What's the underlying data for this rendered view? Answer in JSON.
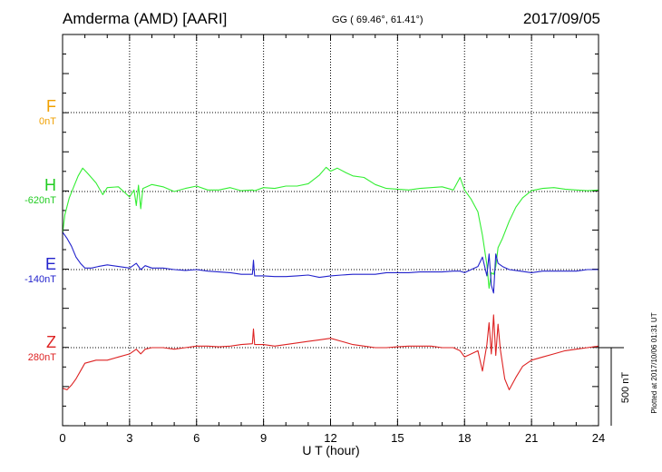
{
  "header": {
    "station": "Amderma (AMD)  [AARI]",
    "coords": "GG ( 69.46°,  61.41°)",
    "date": "2017/09/05"
  },
  "footer": {
    "plotted": "Plotted at 2017/10/06 01:31  UT"
  },
  "scale_bar": {
    "label": "500 nT",
    "nT": 500
  },
  "chart_data": {
    "type": "line",
    "title": "Amderma (AMD)  [AARI]",
    "xlabel": "U T (hour)",
    "ylabel": "",
    "xlim": [
      0,
      24
    ],
    "xticks": [
      "0",
      "3",
      "6",
      "9",
      "12",
      "15",
      "18",
      "21",
      "24"
    ],
    "grid": true,
    "units_per_band": 500,
    "series": [
      {
        "name": "F",
        "baseline_label": "0nT",
        "color": "#f0a000",
        "x": [],
        "y": []
      },
      {
        "name": "H",
        "baseline_label": "-620nT",
        "color": "#33ee33",
        "x": [
          0,
          0.1,
          0.3,
          0.5,
          0.7,
          0.9,
          1.1,
          1.5,
          1.8,
          2.0,
          2.5,
          3.0,
          3.2,
          3.3,
          3.4,
          3.5,
          3.6,
          4.0,
          4.5,
          5.0,
          5.5,
          6.0,
          6.5,
          7.0,
          7.5,
          8.0,
          8.5,
          8.6,
          9.0,
          9.5,
          10.0,
          10.5,
          11.0,
          11.5,
          11.8,
          12.0,
          12.3,
          12.7,
          13.0,
          13.5,
          14.0,
          14.5,
          15.0,
          15.5,
          16.0,
          16.5,
          17.0,
          17.5,
          17.8,
          18.0,
          18.3,
          18.6,
          18.8,
          19.0,
          19.1,
          19.2,
          19.3,
          19.4,
          19.5,
          19.7,
          20.0,
          20.3,
          20.6,
          21.0,
          21.5,
          22.0,
          22.5,
          23.0,
          23.5,
          24.0
        ],
        "y": [
          -270,
          -150,
          -40,
          30,
          100,
          150,
          120,
          55,
          -20,
          25,
          30,
          -35,
          10,
          -90,
          40,
          -110,
          20,
          45,
          30,
          0,
          20,
          35,
          10,
          10,
          25,
          5,
          10,
          5,
          25,
          20,
          35,
          35,
          50,
          105,
          155,
          130,
          150,
          120,
          100,
          90,
          45,
          20,
          15,
          10,
          20,
          25,
          30,
          10,
          90,
          10,
          -50,
          -130,
          -280,
          -470,
          -620,
          -520,
          -530,
          -480,
          -360,
          -300,
          -190,
          -100,
          -40,
          5,
          20,
          25,
          15,
          10,
          5,
          10
        ]
      },
      {
        "name": "E",
        "baseline_label": "-140nT",
        "color": "#2222cc",
        "x": [
          0,
          0.2,
          0.4,
          0.6,
          0.8,
          1.0,
          1.3,
          1.6,
          2.0,
          2.5,
          3.0,
          3.3,
          3.5,
          3.7,
          4.0,
          4.5,
          5.0,
          5.5,
          6.0,
          6.5,
          7.0,
          7.5,
          8.0,
          8.5,
          8.55,
          8.6,
          9.0,
          9.5,
          10.0,
          10.5,
          11.0,
          11.5,
          12.0,
          12.5,
          13.0,
          13.5,
          14.0,
          14.5,
          15.0,
          15.5,
          16.0,
          16.5,
          17.0,
          17.5,
          17.8,
          18.0,
          18.3,
          18.6,
          18.8,
          19.0,
          19.1,
          19.2,
          19.3,
          19.4,
          19.5,
          19.7,
          20.0,
          20.5,
          21.0,
          21.5,
          22.0,
          22.5,
          23.0,
          23.5,
          24.0
        ],
        "y": [
          240,
          200,
          150,
          80,
          40,
          10,
          10,
          20,
          30,
          20,
          10,
          40,
          0,
          25,
          10,
          10,
          0,
          -5,
          0,
          -10,
          -15,
          -20,
          -30,
          -30,
          60,
          -40,
          -40,
          -45,
          -45,
          -40,
          -35,
          -50,
          -40,
          -35,
          -30,
          -30,
          -30,
          -20,
          -20,
          -20,
          -15,
          -15,
          -15,
          -10,
          -10,
          -20,
          0,
          20,
          80,
          -40,
          100,
          -100,
          -150,
          100,
          40,
          20,
          0,
          -10,
          -20,
          -10,
          -10,
          -10,
          -10,
          0,
          0
        ]
      },
      {
        "name": "Z",
        "baseline_label": "280nT",
        "color": "#dd2222",
        "x": [
          0,
          0.2,
          0.4,
          0.6,
          0.8,
          1.0,
          1.5,
          2.0,
          2.5,
          3.0,
          3.3,
          3.5,
          3.7,
          4.0,
          4.5,
          5.0,
          5.5,
          6.0,
          6.5,
          7.0,
          7.5,
          8.0,
          8.5,
          8.55,
          8.6,
          9.0,
          9.5,
          10.0,
          10.5,
          11.0,
          11.5,
          12.0,
          12.5,
          13.0,
          13.5,
          14.0,
          14.5,
          15.0,
          15.5,
          16.0,
          16.5,
          17.0,
          17.5,
          17.8,
          18.0,
          18.3,
          18.6,
          18.8,
          19.0,
          19.1,
          19.2,
          19.3,
          19.4,
          19.5,
          19.6,
          19.8,
          20.0,
          20.3,
          20.6,
          21.0,
          21.5,
          22.0,
          22.5,
          23.0,
          23.5,
          24.0
        ],
        "y": [
          -260,
          -270,
          -240,
          -200,
          -150,
          -100,
          -80,
          -80,
          -60,
          -40,
          -10,
          -40,
          -10,
          0,
          0,
          -10,
          0,
          10,
          10,
          5,
          10,
          20,
          25,
          120,
          20,
          20,
          10,
          20,
          30,
          40,
          50,
          60,
          40,
          20,
          10,
          0,
          0,
          5,
          10,
          10,
          10,
          0,
          0,
          -20,
          -60,
          -40,
          -20,
          -150,
          20,
          160,
          -40,
          210,
          -50,
          150,
          -10,
          -200,
          -270,
          -190,
          -120,
          -80,
          -60,
          -40,
          -20,
          -10,
          0,
          10
        ]
      }
    ]
  }
}
